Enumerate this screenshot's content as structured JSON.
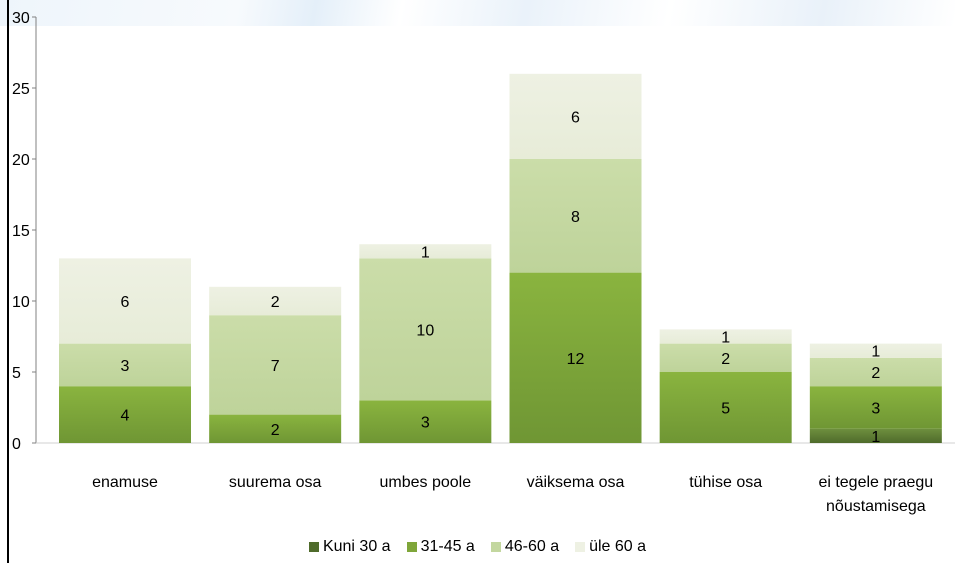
{
  "chart_data": {
    "type": "bar",
    "stacked": true,
    "categories": [
      "enamuse",
      "suurema osa",
      "umbes poole",
      "väiksema osa",
      "tühise osa",
      "ei tegele praegu nõustamisega"
    ],
    "category_label_lines": [
      [
        "enamuse"
      ],
      [
        "suurema osa"
      ],
      [
        "umbes poole"
      ],
      [
        "väiksema osa"
      ],
      [
        "tühise osa"
      ],
      [
        "ei tegele praegu",
        "nõustamisega"
      ]
    ],
    "series": [
      {
        "name": "Kuni 30 a",
        "color": "#5b7a33",
        "values": [
          0,
          0,
          0,
          0,
          0,
          1
        ],
        "labels": [
          "",
          "",
          "",
          "",
          "",
          "1"
        ]
      },
      {
        "name": "31-45 a",
        "color": "#86b040",
        "values": [
          4,
          2,
          3,
          12,
          5,
          3
        ],
        "labels": [
          "4",
          "2",
          "3",
          "12",
          "5",
          "3"
        ]
      },
      {
        "name": "46-60 a",
        "color": "#c8d9a4",
        "values": [
          3,
          7,
          10,
          8,
          2,
          2
        ],
        "labels": [
          "3",
          "7",
          "10",
          "8",
          "2",
          "2"
        ]
      },
      {
        "name": "üle 60 a",
        "color": "#ebefde",
        "values": [
          6,
          2,
          1,
          6,
          1,
          1
        ],
        "labels": [
          "6",
          "2",
          "1",
          "6",
          "1",
          "1"
        ]
      }
    ],
    "ylim": [
      0,
      30
    ],
    "yticks": [
      "0",
      "5",
      "10",
      "15",
      "20",
      "25",
      "30"
    ],
    "grid": false,
    "legend_position": "bottom"
  }
}
